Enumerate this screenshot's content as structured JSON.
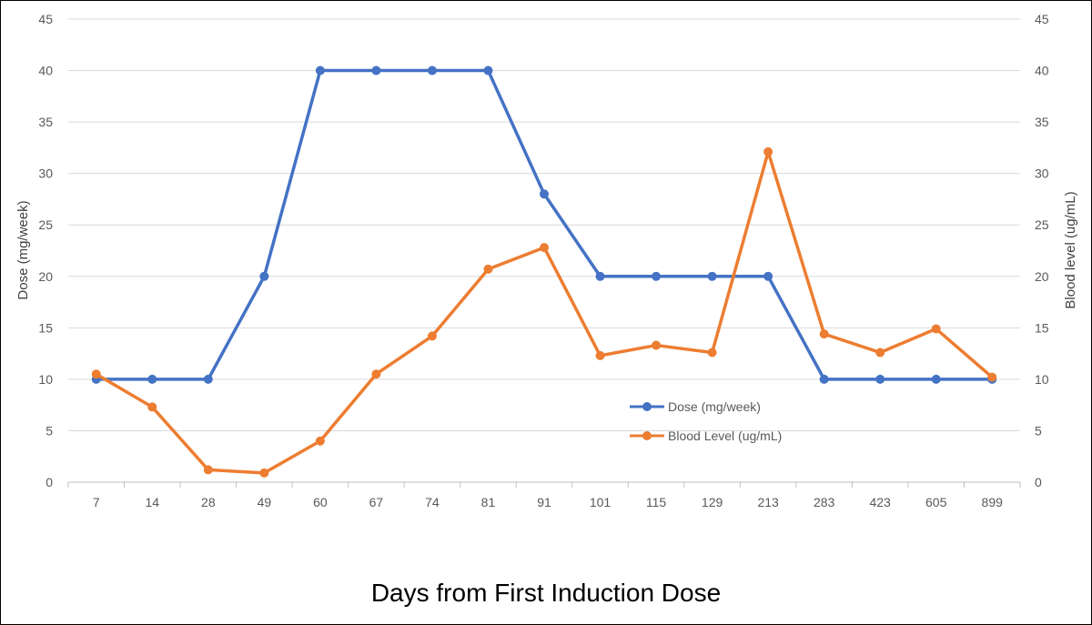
{
  "chart_data": {
    "type": "line",
    "categories": [
      "7",
      "14",
      "28",
      "49",
      "60",
      "67",
      "74",
      "81",
      "91",
      "101",
      "115",
      "129",
      "213",
      "283",
      "423",
      "605",
      "899"
    ],
    "series": [
      {
        "name": "Dose (mg/week)",
        "axis": "left",
        "color": "#4472C4",
        "values": [
          10,
          10,
          10,
          20,
          40,
          40,
          40,
          40,
          28,
          20,
          20,
          20,
          20,
          10,
          10,
          10,
          10
        ]
      },
      {
        "name": "Blood Level (ug/mL)",
        "axis": "right",
        "color": "#ED7D31",
        "values": [
          10.5,
          7.3,
          1.2,
          0.9,
          4.0,
          10.5,
          14.2,
          20.7,
          22.8,
          12.3,
          13.3,
          12.6,
          32.1,
          14.4,
          12.6,
          14.9,
          10.2
        ]
      }
    ],
    "ylim": [
      0,
      45
    ],
    "y2lim": [
      0,
      45
    ],
    "yticks": [
      0,
      5,
      10,
      15,
      20,
      25,
      30,
      35,
      40,
      45
    ],
    "ylabel": "Dose (mg/week)",
    "y2label": "Blood level (ug/mL)",
    "xlabel": "Days from First Induction Dose",
    "legend_position": "center-right",
    "grid": true
  }
}
